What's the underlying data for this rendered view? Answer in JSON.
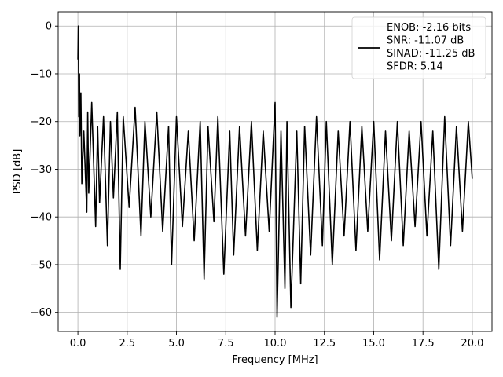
{
  "chart_data": {
    "type": "line",
    "xlabel": "Frequency [MHz]",
    "ylabel": "PSD [dB]",
    "xlim": [
      -1.0,
      21.0
    ],
    "ylim": [
      -64.0,
      3.0
    ],
    "xticks": [
      0.0,
      2.5,
      5.0,
      7.5,
      10.0,
      12.5,
      15.0,
      17.5,
      20.0
    ],
    "xtick_labels": [
      "0.0",
      "2.5",
      "5.0",
      "7.5",
      "10.0",
      "12.5",
      "15.0",
      "17.5",
      "20.0"
    ],
    "yticks": [
      0,
      -10,
      -20,
      -30,
      -40,
      -50,
      -60
    ],
    "ytick_labels": [
      "0",
      "−10",
      "−20",
      "−30",
      "−40",
      "−50",
      "−60"
    ],
    "grid": true,
    "legend_position": "top-right",
    "series": [
      {
        "name": "ENOB: -2.16 bits\nSNR: -11.07 dB\nSINAD: -11.25 dB\nSFDR: 5.14",
        "legend_lines": [
          "ENOB: -2.16 bits",
          "SNR: -11.07 dB",
          "SINAD: -11.25 dB",
          "SFDR: 5.14"
        ],
        "color": "#000000",
        "x": [
          0.0,
          0.02,
          0.05,
          0.08,
          0.1,
          0.15,
          0.2,
          0.3,
          0.45,
          0.5,
          0.55,
          0.7,
          0.9,
          1.0,
          1.1,
          1.3,
          1.5,
          1.65,
          1.8,
          2.0,
          2.15,
          2.3,
          2.6,
          2.9,
          3.2,
          3.4,
          3.7,
          4.0,
          4.3,
          4.6,
          4.75,
          5.0,
          5.3,
          5.6,
          5.9,
          6.2,
          6.4,
          6.6,
          6.9,
          7.1,
          7.4,
          7.7,
          7.9,
          8.2,
          8.5,
          8.8,
          9.1,
          9.4,
          9.7,
          10.0,
          10.1,
          10.3,
          10.5,
          10.6,
          10.8,
          11.1,
          11.3,
          11.5,
          11.8,
          12.1,
          12.4,
          12.6,
          12.9,
          13.2,
          13.5,
          13.8,
          14.1,
          14.4,
          14.7,
          15.0,
          15.3,
          15.6,
          15.9,
          16.2,
          16.5,
          16.8,
          17.1,
          17.4,
          17.7,
          18.0,
          18.3,
          18.6,
          18.9,
          19.2,
          19.5,
          19.8,
          20.0
        ],
        "y": [
          -7,
          0,
          -19,
          -10,
          -23,
          -14,
          -33,
          -22,
          -39,
          -18,
          -35,
          -16,
          -42,
          -21,
          -37,
          -19,
          -46,
          -20,
          -36,
          -18,
          -51,
          -19,
          -38,
          -17,
          -44,
          -20,
          -40,
          -18,
          -43,
          -21,
          -50,
          -19,
          -42,
          -22,
          -45,
          -20,
          -53,
          -21,
          -41,
          -19,
          -52,
          -22,
          -48,
          -21,
          -44,
          -20,
          -47,
          -22,
          -43,
          -16,
          -61,
          -22,
          -55,
          -20,
          -59,
          -22,
          -54,
          -21,
          -48,
          -19,
          -46,
          -20,
          -50,
          -22,
          -44,
          -20,
          -47,
          -21,
          -43,
          -20,
          -49,
          -22,
          -45,
          -20,
          -46,
          -22,
          -42,
          -20,
          -44,
          -22,
          -51,
          -19,
          -46,
          -21,
          -43,
          -20,
          -32
        ]
      }
    ]
  }
}
